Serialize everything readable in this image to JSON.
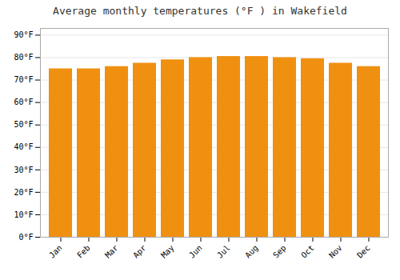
{
  "chart_data": {
    "type": "bar",
    "title": "Average monthly temperatures (°F ) in Wakefield",
    "categories": [
      "Jan",
      "Feb",
      "Mar",
      "Apr",
      "May",
      "Jun",
      "Jul",
      "Aug",
      "Sep",
      "Oct",
      "Nov",
      "Dec"
    ],
    "values": [
      75,
      75,
      76,
      77.5,
      79,
      80,
      80.5,
      80.5,
      80,
      79.5,
      77.5,
      76
    ],
    "color": "#F09010",
    "ylim": [
      0,
      93
    ],
    "yticks": [
      {
        "value": 0,
        "label": "0°F"
      },
      {
        "value": 10,
        "label": "10°F"
      },
      {
        "value": 20,
        "label": "20°F"
      },
      {
        "value": 30,
        "label": "30°F"
      },
      {
        "value": 40,
        "label": "40°F"
      },
      {
        "value": 50,
        "label": "50°F"
      },
      {
        "value": 60,
        "label": "60°F"
      },
      {
        "value": 70,
        "label": "70°F"
      },
      {
        "value": 80,
        "label": "80°F"
      },
      {
        "value": 90,
        "label": "90°F"
      }
    ],
    "grid": true
  }
}
